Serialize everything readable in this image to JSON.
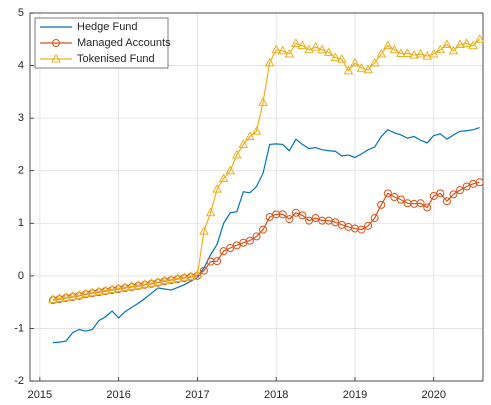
{
  "chart_data": {
    "type": "line",
    "x": [
      2015.167,
      2015.25,
      2015.333,
      2015.417,
      2015.5,
      2015.583,
      2015.667,
      2015.75,
      2015.833,
      2015.917,
      2016,
      2016.083,
      2016.167,
      2016.25,
      2016.333,
      2016.417,
      2016.5,
      2016.583,
      2016.667,
      2016.75,
      2016.833,
      2016.917,
      2017,
      2017.083,
      2017.167,
      2017.25,
      2017.333,
      2017.417,
      2017.5,
      2017.583,
      2017.667,
      2017.75,
      2017.833,
      2017.917,
      2018,
      2018.083,
      2018.167,
      2018.25,
      2018.333,
      2018.417,
      2018.5,
      2018.583,
      2018.667,
      2018.75,
      2018.833,
      2018.917,
      2019,
      2019.083,
      2019.167,
      2019.25,
      2019.333,
      2019.417,
      2019.5,
      2019.583,
      2019.667,
      2019.75,
      2019.833,
      2019.917,
      2020,
      2020.083,
      2020.167,
      2020.25,
      2020.333,
      2020.417,
      2020.5,
      2020.583
    ],
    "series": [
      {
        "name": "Hedge Fund",
        "color": "#0072bd",
        "marker": "none",
        "values": [
          -1.27,
          -1.26,
          -1.24,
          -1.08,
          -1.02,
          -1.05,
          -1.02,
          -0.85,
          -0.78,
          -0.67,
          -0.8,
          -0.68,
          -0.6,
          -0.52,
          -0.43,
          -0.33,
          -0.23,
          -0.25,
          -0.27,
          -0.22,
          -0.17,
          -0.1,
          -0.03,
          0.15,
          0.4,
          0.6,
          1.0,
          1.2,
          1.22,
          1.6,
          1.58,
          1.7,
          1.95,
          2.5,
          2.51,
          2.5,
          2.38,
          2.6,
          2.5,
          2.42,
          2.44,
          2.4,
          2.38,
          2.37,
          2.28,
          2.3,
          2.25,
          2.32,
          2.4,
          2.45,
          2.65,
          2.78,
          2.72,
          2.68,
          2.62,
          2.65,
          2.58,
          2.53,
          2.67,
          2.7,
          2.6,
          2.68,
          2.75,
          2.76,
          2.78,
          2.82
        ]
      },
      {
        "name": "Managed Accounts",
        "color": "#d95319",
        "marker": "circle",
        "values": [
          -0.46,
          -0.44,
          -0.42,
          -0.4,
          -0.38,
          -0.35,
          -0.33,
          -0.31,
          -0.29,
          -0.27,
          -0.25,
          -0.23,
          -0.21,
          -0.19,
          -0.17,
          -0.15,
          -0.13,
          -0.1,
          -0.08,
          -0.06,
          -0.04,
          -0.02,
          0.0,
          0.1,
          0.27,
          0.28,
          0.47,
          0.53,
          0.58,
          0.63,
          0.67,
          0.75,
          0.88,
          1.12,
          1.17,
          1.17,
          1.08,
          1.2,
          1.15,
          1.05,
          1.1,
          1.05,
          1.05,
          1.02,
          0.97,
          0.93,
          0.9,
          0.88,
          0.95,
          1.1,
          1.35,
          1.57,
          1.5,
          1.45,
          1.38,
          1.37,
          1.38,
          1.3,
          1.52,
          1.57,
          1.42,
          1.55,
          1.63,
          1.7,
          1.75,
          1.78
        ]
      },
      {
        "name": "Tokenised Fund",
        "color": "#edb120",
        "marker": "triangle",
        "values": [
          -0.45,
          -0.43,
          -0.41,
          -0.39,
          -0.37,
          -0.34,
          -0.32,
          -0.3,
          -0.28,
          -0.26,
          -0.24,
          -0.22,
          -0.2,
          -0.18,
          -0.16,
          -0.14,
          -0.12,
          -0.09,
          -0.07,
          -0.05,
          -0.03,
          -0.01,
          0.02,
          0.85,
          1.2,
          1.65,
          1.85,
          2.0,
          2.3,
          2.5,
          2.65,
          2.75,
          3.3,
          4.05,
          4.3,
          4.28,
          4.22,
          4.42,
          4.38,
          4.3,
          4.35,
          4.3,
          4.25,
          4.15,
          4.12,
          3.9,
          4.05,
          3.95,
          3.92,
          4.05,
          4.22,
          4.38,
          4.3,
          4.23,
          4.23,
          4.2,
          4.22,
          4.18,
          4.22,
          4.3,
          4.4,
          4.28,
          4.4,
          4.42,
          4.38,
          4.5
        ]
      }
    ],
    "xlim": [
      2014.875,
      2020.625
    ],
    "xticks": [
      2015,
      2016,
      2017,
      2018,
      2019,
      2020
    ],
    "ylim": [
      -2,
      5
    ],
    "yticks": [
      -2,
      -1,
      0,
      1,
      2,
      3,
      4,
      5
    ],
    "grid": true,
    "legend_position": "northwest"
  }
}
